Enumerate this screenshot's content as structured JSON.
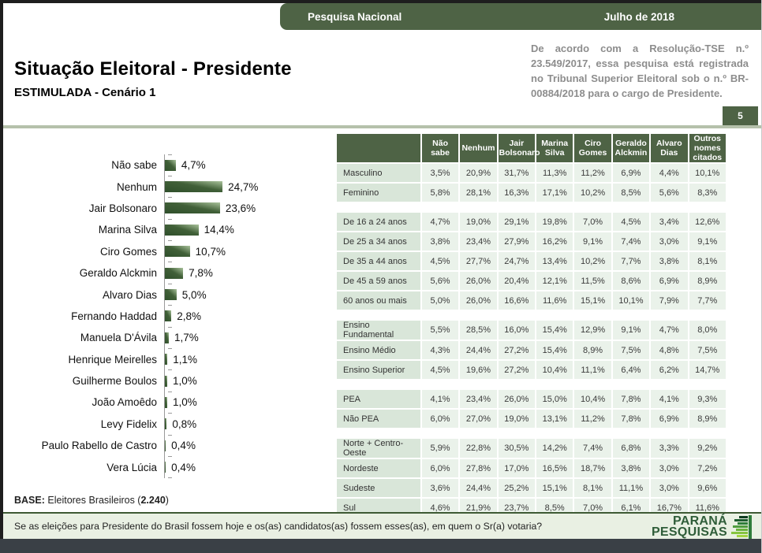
{
  "header": {
    "band_left_label": "Pesquisa Nacional",
    "band_right_label": "Julho de 2018",
    "title": "Situação Eleitoral - Presidente",
    "subtitle": "ESTIMULADA - Cenário 1",
    "regulatory_note": "De acordo com a Resolução-TSE n.º 23.549/2017, essa pesquisa está registrada no Tribunal Superior Eleitoral sob o n.º BR-00884/2018 para o cargo de Presidente.",
    "page_number": "5"
  },
  "chart_data": [
    {
      "type": "bar",
      "orientation": "horizontal",
      "title": "Situação Eleitoral - Presidente (ESTIMULADA - Cenário 1)",
      "categories": [
        "Não sabe",
        "Nenhum",
        "Jair Bolsonaro",
        "Marina Silva",
        "Ciro Gomes",
        "Geraldo Alckmin",
        "Alvaro Dias",
        "Fernando Haddad",
        "Manuela D'Ávila",
        "Henrique Meirelles",
        "Guilherme Boulos",
        "João Amoêdo",
        "Levy Fidelix",
        "Paulo Rabello de Castro",
        "Vera Lúcia"
      ],
      "values": [
        4.7,
        24.7,
        23.6,
        14.4,
        10.7,
        7.8,
        5.0,
        2.8,
        1.7,
        1.1,
        1.0,
        1.0,
        0.8,
        0.4,
        0.4
      ],
      "value_labels": [
        "4,7%",
        "24,7%",
        "23,6%",
        "14,4%",
        "10,7%",
        "7,8%",
        "5,0%",
        "2,8%",
        "1,7%",
        "1,1%",
        "1,0%",
        "1,0%",
        "0,8%",
        "0,4%",
        "0,4%"
      ],
      "xlim": [
        0,
        26
      ],
      "grid": false,
      "legend": "none",
      "unit": "%"
    },
    {
      "type": "table",
      "columns": [
        "Não sabe",
        "Nenhum",
        "Jair Bolsonaro",
        "Marina Silva",
        "Ciro Gomes",
        "Geraldo Alckmin",
        "Alvaro Dias",
        "Outros nomes citados"
      ],
      "groups": [
        {
          "name": "sexo",
          "rows": [
            {
              "label": "Masculino",
              "values": [
                "3,5%",
                "20,9%",
                "31,7%",
                "11,3%",
                "11,2%",
                "6,9%",
                "4,4%",
                "10,1%"
              ]
            },
            {
              "label": "Feminino",
              "values": [
                "5,8%",
                "28,1%",
                "16,3%",
                "17,1%",
                "10,2%",
                "8,5%",
                "5,6%",
                "8,3%"
              ]
            }
          ]
        },
        {
          "name": "idade",
          "rows": [
            {
              "label": "De 16 a 24 anos",
              "values": [
                "4,7%",
                "19,0%",
                "29,1%",
                "19,8%",
                "7,0%",
                "4,5%",
                "3,4%",
                "12,6%"
              ]
            },
            {
              "label": "De 25 a 34 anos",
              "values": [
                "3,8%",
                "23,4%",
                "27,9%",
                "16,2%",
                "9,1%",
                "7,4%",
                "3,0%",
                "9,1%"
              ]
            },
            {
              "label": "De 35 a 44 anos",
              "values": [
                "4,5%",
                "27,7%",
                "24,7%",
                "13,4%",
                "10,2%",
                "7,7%",
                "3,8%",
                "8,1%"
              ]
            },
            {
              "label": "De 45 a 59 anos",
              "values": [
                "5,6%",
                "26,0%",
                "20,4%",
                "12,1%",
                "11,5%",
                "8,6%",
                "6,9%",
                "8,9%"
              ]
            },
            {
              "label": "60 anos ou mais",
              "values": [
                "5,0%",
                "26,0%",
                "16,6%",
                "11,6%",
                "15,1%",
                "10,1%",
                "7,9%",
                "7,7%"
              ]
            }
          ]
        },
        {
          "name": "escolaridade",
          "rows": [
            {
              "label": "Ensino Fundamental",
              "values": [
                "5,5%",
                "28,5%",
                "16,0%",
                "15,4%",
                "12,9%",
                "9,1%",
                "4,7%",
                "8,0%"
              ]
            },
            {
              "label": "Ensino Médio",
              "values": [
                "4,3%",
                "24,4%",
                "27,2%",
                "15,4%",
                "8,9%",
                "7,5%",
                "4,8%",
                "7,5%"
              ]
            },
            {
              "label": "Ensino Superior",
              "values": [
                "4,5%",
                "19,6%",
                "27,2%",
                "10,4%",
                "11,1%",
                "6,4%",
                "6,2%",
                "14,7%"
              ]
            }
          ]
        },
        {
          "name": "pea",
          "rows": [
            {
              "label": "PEA",
              "values": [
                "4,1%",
                "23,4%",
                "26,0%",
                "15,0%",
                "10,4%",
                "7,8%",
                "4,1%",
                "9,3%"
              ]
            },
            {
              "label": "Não PEA",
              "values": [
                "6,0%",
                "27,0%",
                "19,0%",
                "13,1%",
                "11,2%",
                "7,8%",
                "6,9%",
                "8,9%"
              ]
            }
          ]
        },
        {
          "name": "regiao",
          "rows": [
            {
              "label": "Norte + Centro-Oeste",
              "values": [
                "5,9%",
                "22,8%",
                "30,5%",
                "14,2%",
                "7,4%",
                "6,8%",
                "3,3%",
                "9,2%"
              ]
            },
            {
              "label": "Nordeste",
              "values": [
                "6,0%",
                "27,8%",
                "17,0%",
                "16,5%",
                "18,7%",
                "3,8%",
                "3,0%",
                "7,2%"
              ]
            },
            {
              "label": "Sudeste",
              "values": [
                "3,6%",
                "24,4%",
                "25,2%",
                "15,1%",
                "8,1%",
                "11,1%",
                "3,0%",
                "9,6%"
              ]
            },
            {
              "label": "Sul",
              "values": [
                "4,6%",
                "21,9%",
                "23,7%",
                "8,5%",
                "7,0%",
                "6,1%",
                "16,7%",
                "11,6%"
              ]
            }
          ]
        }
      ]
    }
  ],
  "base_note": {
    "prefix": "BASE:",
    "middle": " Eleitores Brasileiros (",
    "value": "2.240",
    "suffix": ")"
  },
  "footer": {
    "question": "Se as eleições para Presidente do Brasil fossem hoje e os(as) candidatos(as) fossem esses(as), em quem o Sr(a) votaria?",
    "logo_line1": "PARANÁ",
    "logo_line2": "PESQUISAS"
  },
  "colors": {
    "accent_green": "#4e6345",
    "bar_dark": "#2f4f2b",
    "bar_light": "#a9c29b",
    "row_label_bg": "#d9e6d9",
    "row_value_bg": "#eaf2ea",
    "footer_bg": "#e9f0e3",
    "logo_green": "#2f5d39",
    "sage_line": "#b5c1ab"
  }
}
